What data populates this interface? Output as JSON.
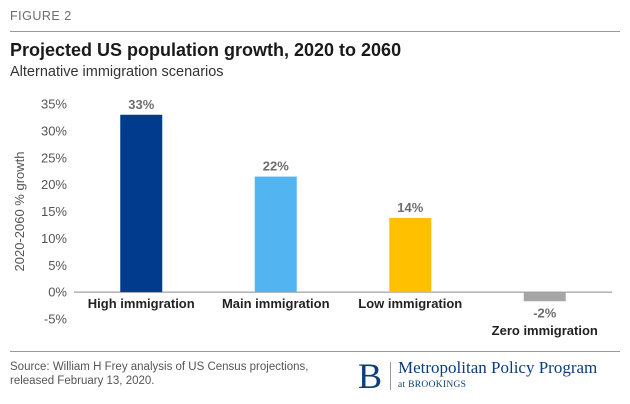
{
  "figure_label": "FIGURE 2",
  "chart_data": {
    "type": "bar",
    "title": "Projected US population growth, 2020 to 2060",
    "subtitle": "Alternative immigration scenarios",
    "xlabel": "",
    "ylabel": "2020-2060 % growth",
    "ylim": [
      -5,
      35
    ],
    "yticks": [
      -5,
      0,
      5,
      10,
      15,
      20,
      25,
      30,
      35
    ],
    "ytick_labels": [
      "-5%",
      "0%",
      "5%",
      "10%",
      "15%",
      "20%",
      "25%",
      "30%",
      "35%"
    ],
    "categories": [
      "High immigration",
      "Main immigration",
      "Low immigration",
      "Zero immigration"
    ],
    "values": [
      33,
      21.5,
      13.8,
      -1.7
    ],
    "data_labels": [
      "33%",
      "22%",
      "14%",
      "-2%"
    ],
    "colors": [
      "#003b8e",
      "#53b4f2",
      "#ffc000",
      "#a6a6a6"
    ],
    "grid": false
  },
  "source": {
    "line1": "Source: William H Frey analysis of US Census projections,",
    "line2": "released February 13, 2020."
  },
  "brand": {
    "logo_letter": "B",
    "name": "Metropolitan Policy Program",
    "sub": "at BROOKINGS",
    "color": "#0b3d7a"
  }
}
